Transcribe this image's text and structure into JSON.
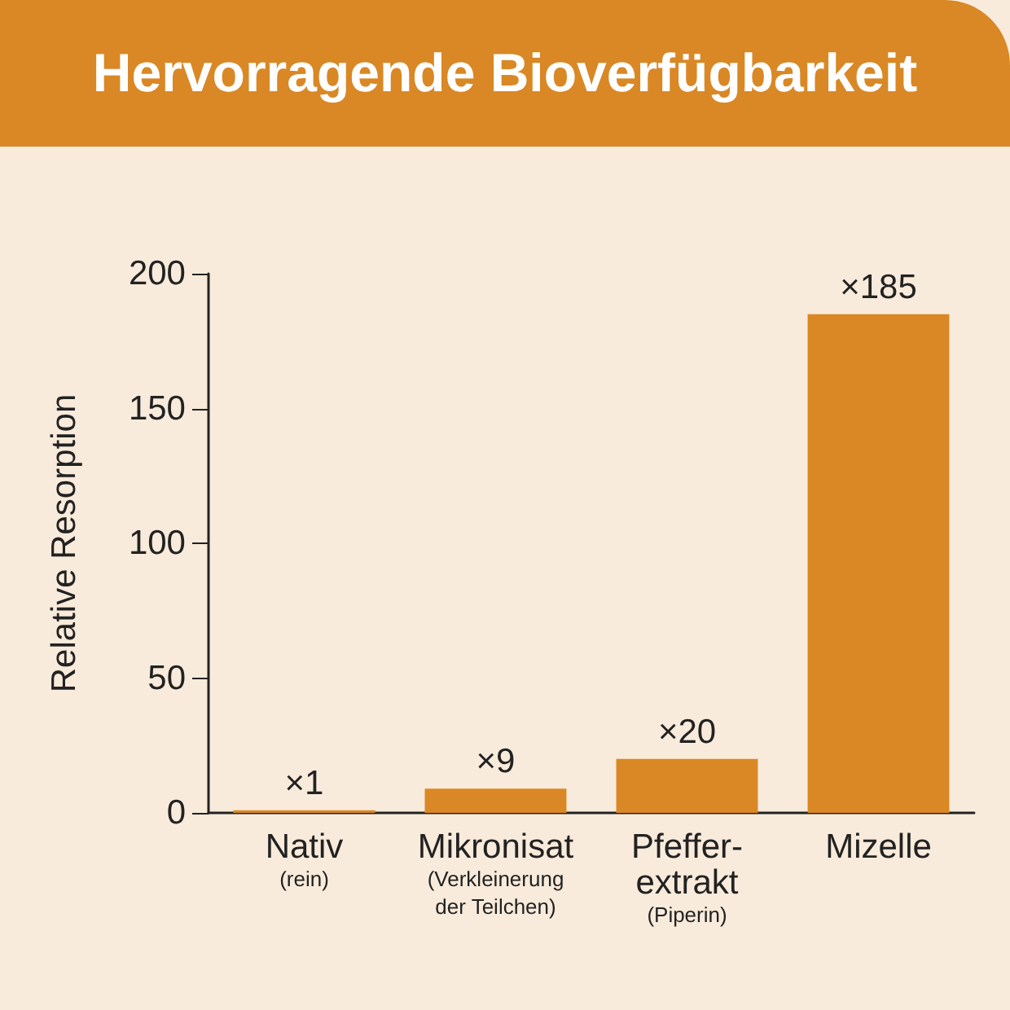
{
  "chart_data": {
    "type": "bar",
    "title": "Hervorragende Bioverfügbarkeit",
    "ylabel": "Relative Resorption",
    "categories": [
      "Nativ\n(rein)",
      "Mikronisat\n(Verkleinerung\nder Teilchen)",
      "Pfeffer-\nextrakt\n(Piperin)",
      "Mizelle"
    ],
    "values": [
      1,
      9,
      20,
      185
    ],
    "value_labels": [
      "×1",
      "×9",
      "×20",
      "×185"
    ],
    "color": "#d98825",
    "ylim": [
      0,
      200
    ],
    "yticks": [
      0,
      50,
      100,
      150,
      200
    ]
  }
}
